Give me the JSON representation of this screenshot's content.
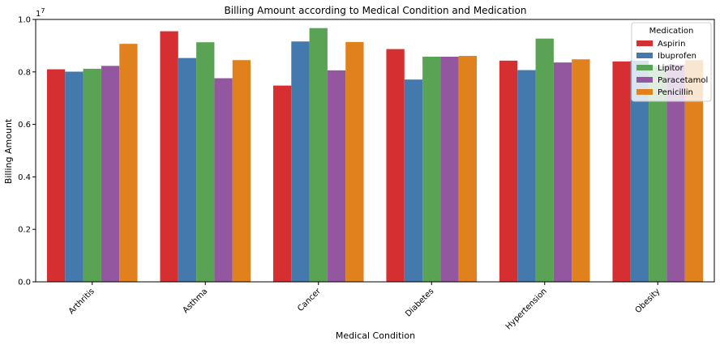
{
  "chart_data": {
    "type": "bar",
    "title": "Billing Amount according to Medical Condition and Medication",
    "xlabel": "Medical Condition",
    "ylabel": "Billing Amount",
    "y_offset_label": "1e7",
    "ylim": [
      0,
      1.0
    ],
    "yticks": [
      "0.0",
      "0.2",
      "0.4",
      "0.6",
      "0.8",
      "1.0"
    ],
    "categories": [
      "Arthritis",
      "Asthma",
      "Cancer",
      "Diabetes",
      "Hypertension",
      "Obesity"
    ],
    "legend_title": "Medication",
    "legend_position": "top-right",
    "series": [
      {
        "name": "Aspirin",
        "color": "#d62f31",
        "values": [
          0.81,
          0.955,
          0.748,
          0.887,
          0.843,
          0.84
        ]
      },
      {
        "name": "Ibuprofen",
        "color": "#4479ad",
        "values": [
          0.801,
          0.853,
          0.916,
          0.771,
          0.807,
          0.843
        ]
      },
      {
        "name": "Lipitor",
        "color": "#5aa354",
        "values": [
          0.812,
          0.913,
          0.967,
          0.858,
          0.927,
          0.823
        ]
      },
      {
        "name": "Paracetamol",
        "color": "#92579e",
        "values": [
          0.823,
          0.776,
          0.806,
          0.858,
          0.836,
          0.828
        ]
      },
      {
        "name": "Penicillin",
        "color": "#e1811d",
        "values": [
          0.907,
          0.845,
          0.914,
          0.861,
          0.848,
          0.845
        ]
      }
    ]
  }
}
